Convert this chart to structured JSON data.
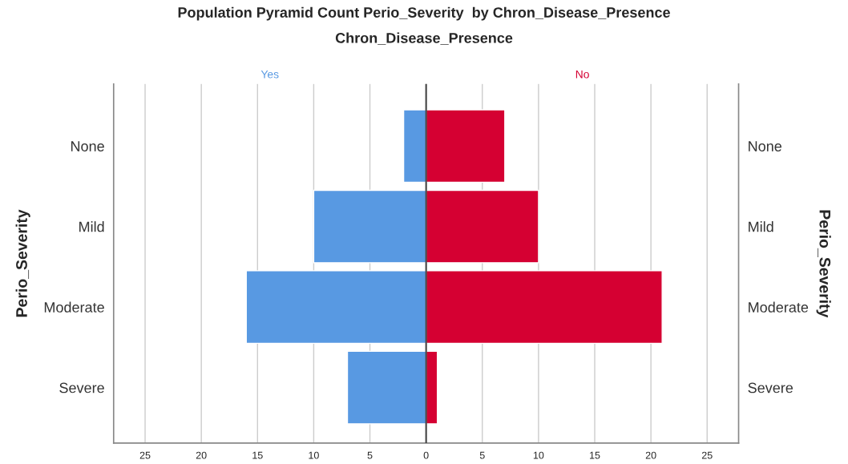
{
  "chart_data": {
    "type": "bar",
    "orientation": "horizontal",
    "stacked": true,
    "title": "Population Pyramid Count Perio_Severity  by Chron_Disease_Presence",
    "legend_title": "Chron_Disease_Presence",
    "ylabel": "Perio_Severity",
    "y2label": "Perio_Severity",
    "categories": [
      "None",
      "Mild",
      "Moderate",
      "Severe"
    ],
    "series": [
      {
        "name": "Yes",
        "color": "#5899e2",
        "values": [
          -2,
          -10,
          -16,
          -7
        ]
      },
      {
        "name": "No",
        "color": "#d50032",
        "values": [
          7,
          10,
          21,
          1
        ]
      }
    ],
    "xlim": [
      -27.8,
      27.8
    ],
    "xticks": [
      {
        "value": -25,
        "label": "25"
      },
      {
        "value": -20,
        "label": "20"
      },
      {
        "value": -15,
        "label": "15"
      },
      {
        "value": -10,
        "label": "10"
      },
      {
        "value": -5,
        "label": "5"
      },
      0,
      5,
      10,
      15,
      20,
      25
    ],
    "ref_lines": [
      {
        "axis": "x",
        "value": 0,
        "color": "#444444"
      }
    ],
    "grid": "x"
  }
}
